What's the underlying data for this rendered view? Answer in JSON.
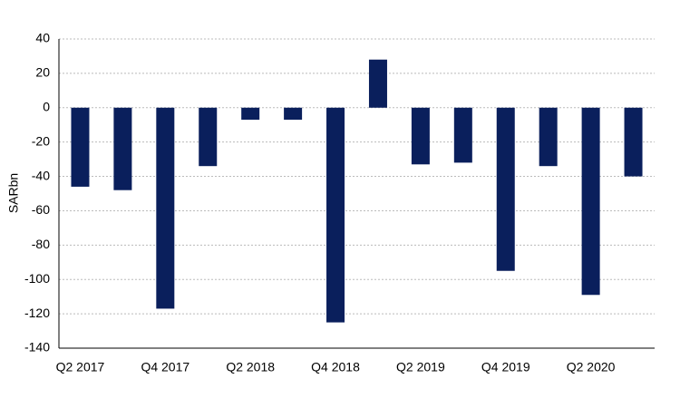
{
  "chart_data": {
    "type": "bar",
    "y_label": "SARbn",
    "categories": [
      "Q2 2017",
      null,
      "Q4 2017",
      null,
      "Q2 2018",
      null,
      "Q4 2018",
      null,
      "Q2 2019",
      null,
      "Q4 2019",
      null,
      "Q2 2020",
      null
    ],
    "values": [
      -46,
      -48,
      -117,
      -34,
      -7,
      -7,
      -125,
      28,
      -33,
      -32,
      -95,
      -34,
      -109,
      -40
    ],
    "color": "#0a1f5c",
    "ylim": [
      -140,
      40
    ],
    "yticks": [
      -140,
      -120,
      -100,
      -80,
      -60,
      -40,
      -20,
      0,
      20,
      40
    ],
    "grid": true
  }
}
